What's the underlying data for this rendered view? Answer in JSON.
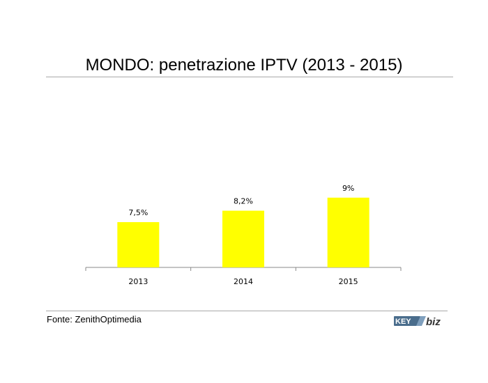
{
  "title": "MONDO: penetrazione IPTV (2013 - 2015)",
  "source": "Fonte: ZenithOptimedia",
  "logo": {
    "text_left": "KEY",
    "text_right": "biz"
  },
  "colors": {
    "bar": "#ffff00",
    "axis": "#888888",
    "rule": "#a8a8a8"
  },
  "chart_data": {
    "type": "bar",
    "categories": [
      "2013",
      "2014",
      "2015"
    ],
    "values": [
      7.5,
      8.2,
      9
    ],
    "data_labels": [
      "7,5%",
      "8,2%",
      "9%"
    ],
    "unit": "%",
    "grid": false
  }
}
